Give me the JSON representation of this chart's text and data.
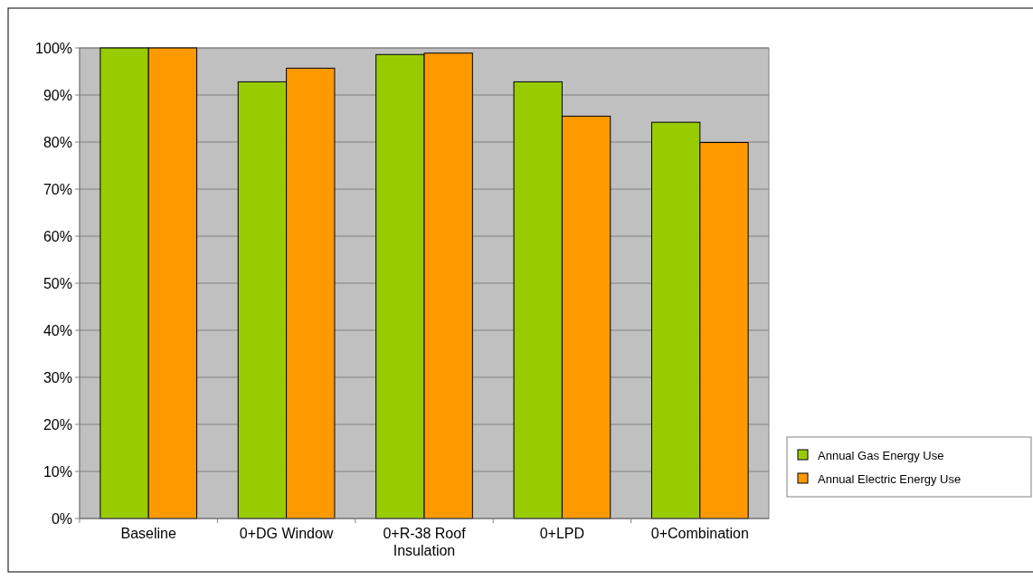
{
  "chart_data": {
    "type": "bar",
    "categories": [
      "Baseline",
      "0+DG Window",
      "0+R-38 Roof Insulation",
      "0+LPD",
      "0+Combination"
    ],
    "series": [
      {
        "name": "Annual Gas Energy Use",
        "color": "#99cc00",
        "values": [
          100,
          92.8,
          98.6,
          92.8,
          84.2
        ]
      },
      {
        "name": "Annual Electric Energy Use",
        "color": "#ff9900",
        "values": [
          100,
          95.7,
          98.9,
          85.5,
          79.9
        ]
      }
    ],
    "ylim": [
      0,
      100
    ],
    "yticks": [
      {
        "value": 0,
        "label": "0%"
      },
      {
        "value": 10,
        "label": "10%"
      },
      {
        "value": 20,
        "label": "20%"
      },
      {
        "value": 30,
        "label": "30%"
      },
      {
        "value": 40,
        "label": "40%"
      },
      {
        "value": 50,
        "label": "50%"
      },
      {
        "value": 60,
        "label": "60%"
      },
      {
        "value": 70,
        "label": "70%"
      },
      {
        "value": 80,
        "label": "80%"
      },
      {
        "value": 90,
        "label": "90%"
      },
      {
        "value": 100,
        "label": "100%"
      }
    ],
    "grid": "y",
    "legend": "right"
  }
}
